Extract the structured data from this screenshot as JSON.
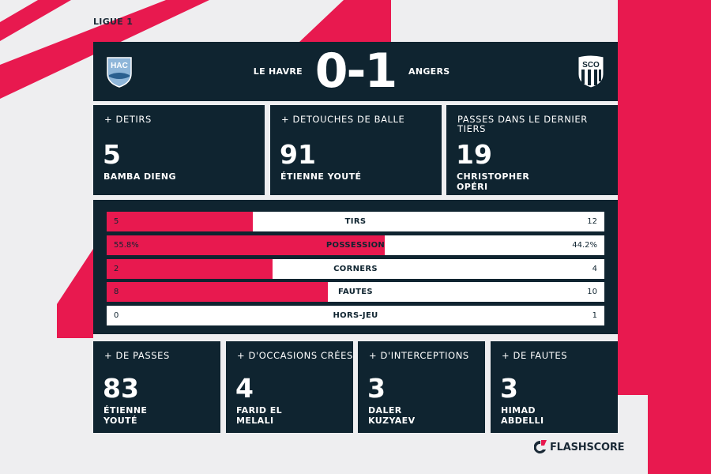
{
  "league": "LIGUE 1",
  "match": {
    "home_team": "LE HAVRE",
    "away_team": "ANGERS",
    "score": "0-1",
    "home_crest_text": "HAC",
    "away_crest_text": "SCO"
  },
  "top_cards": [
    {
      "title": "+ DETIRS",
      "value": "5",
      "player": "BAMBA DIENG"
    },
    {
      "title": "+ DETOUCHES DE BALLE",
      "value": "91",
      "player": "ÉTIENNE YOUTÉ"
    },
    {
      "title": "PASSES DANS LE DERNIER TIERS",
      "value": "19",
      "player": "CHRISTOPHER OPÉRI"
    }
  ],
  "stat_bars": [
    {
      "label": "TIRS",
      "home": "5",
      "away": "12",
      "home_share": 0.294
    },
    {
      "label": "POSSESSION",
      "home": "55.8%",
      "away": "44.2%",
      "home_share": 0.558
    },
    {
      "label": "CORNERS",
      "home": "2",
      "away": "4",
      "home_share": 0.333
    },
    {
      "label": "FAUTES",
      "home": "8",
      "away": "10",
      "home_share": 0.444
    },
    {
      "label": "HORS-JEU",
      "home": "0",
      "away": "1",
      "home_share": 0.0
    }
  ],
  "bottom_cards": [
    {
      "title": "+ DE PASSES",
      "value": "83",
      "player": "ÉTIENNE YOUTÉ"
    },
    {
      "title": "+ D'OCCASIONS CRÉES",
      "value": "4",
      "player": "FARID EL MELALI"
    },
    {
      "title": "+ D'INTERCEPTIONS",
      "value": "3",
      "player": "DALER KUZYAEV"
    },
    {
      "title": "+ DE FAUTES",
      "value": "3",
      "player": "HIMAD ABDELLI"
    }
  ],
  "brand": "FLASHSCORE",
  "colors": {
    "accent": "#e8194f",
    "panel": "#0f2430",
    "background": "#eeeef0"
  }
}
